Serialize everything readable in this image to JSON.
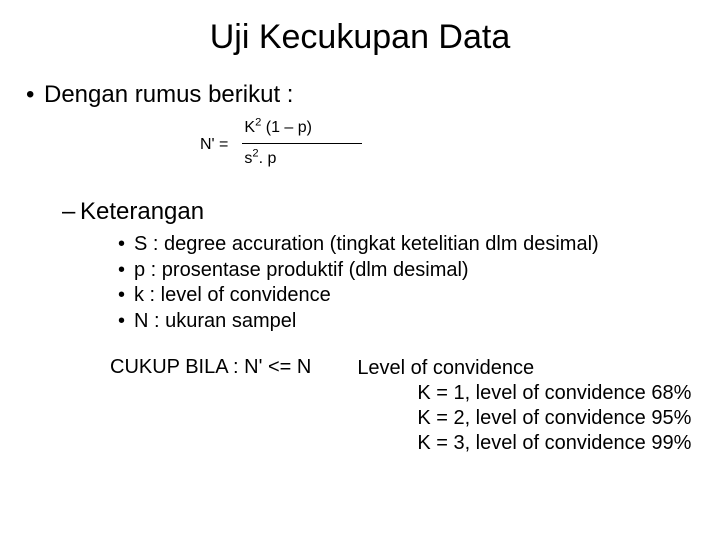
{
  "title": "Uji Kecukupan Data",
  "intro": "Dengan rumus berikut :",
  "formula": {
    "lhs": "N' =",
    "numerator_pre": "K",
    "numerator_sup": "2",
    "numerator_post": " (1 – p)",
    "denominator_pre": "s",
    "denominator_sup": "2",
    "denominator_post": ". p"
  },
  "keterangan_label": "Keterangan",
  "keterangan_items": [
    "S : degree  accuration (tingkat ketelitian dlm desimal)",
    "p : prosentase produktif (dlm desimal)",
    "k : level of convidence",
    "N : ukuran sampel"
  ],
  "cukup": "CUKUP BILA :  N' <= N",
  "loc_heading": "Level of convidence",
  "loc_lines": [
    "K = 1, level of convidence 68%",
    "K = 2, level of convidence 95%",
    "K = 3, level of convidence 99%"
  ],
  "colors": {
    "background": "#ffffff",
    "text": "#000000"
  }
}
